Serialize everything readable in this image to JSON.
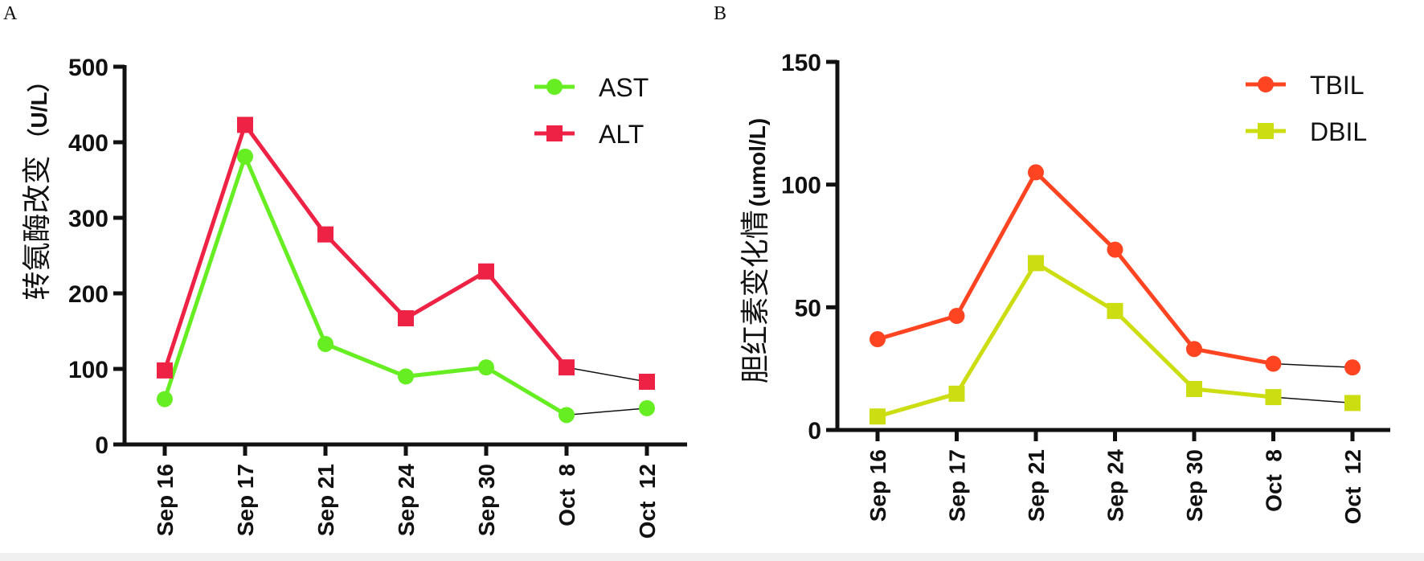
{
  "chart_data": [
    {
      "panel": "A",
      "type": "line",
      "title": "",
      "xlabel": "",
      "ylabel": "转氨酶改变",
      "ylabel_unit": "（U/L）",
      "categories": [
        "Sep 16",
        "Sep 17",
        "Sep 21",
        "Sep 24",
        "Sep 30",
        "Oct  8",
        "Oct  12"
      ],
      "ylim": [
        0,
        500
      ],
      "yticks": [
        0,
        100,
        200,
        300,
        400,
        500
      ],
      "legend_position": "top-right",
      "grid": false,
      "series": [
        {
          "name": "AST",
          "marker": "circle",
          "color": "#66ee22",
          "values": [
            60,
            381,
            133,
            90,
            102,
            39,
            48
          ],
          "dashed_last_segment": true
        },
        {
          "name": "ALT",
          "marker": "square",
          "color": "#ee2244",
          "values": [
            98,
            423,
            278,
            167,
            229,
            102,
            83
          ],
          "dashed_last_segment": true
        }
      ]
    },
    {
      "panel": "B",
      "type": "line",
      "title": "",
      "xlabel": "",
      "ylabel": "胆红素变化情",
      "ylabel_unit": "(umol/L)",
      "categories": [
        "Sep 16",
        "Sep 17",
        "Sep 21",
        "Sep 24",
        "Sep 30",
        "Oct  8",
        "Oct  12"
      ],
      "ylim": [
        0,
        150
      ],
      "yticks": [
        0,
        50,
        100,
        150
      ],
      "legend_position": "top-right",
      "grid": false,
      "series": [
        {
          "name": "TBIL",
          "marker": "circle",
          "color": "#ff4422",
          "values": [
            37,
            46.5,
            105,
            73.5,
            33,
            27,
            25.5
          ],
          "dashed_last_segment": true
        },
        {
          "name": "DBIL",
          "marker": "square",
          "color": "#ccdd11",
          "values": [
            5.5,
            14.8,
            68,
            48.5,
            16.7,
            13.4,
            11
          ],
          "dashed_last_segment": true
        }
      ]
    }
  ],
  "connector_color": "#111111"
}
